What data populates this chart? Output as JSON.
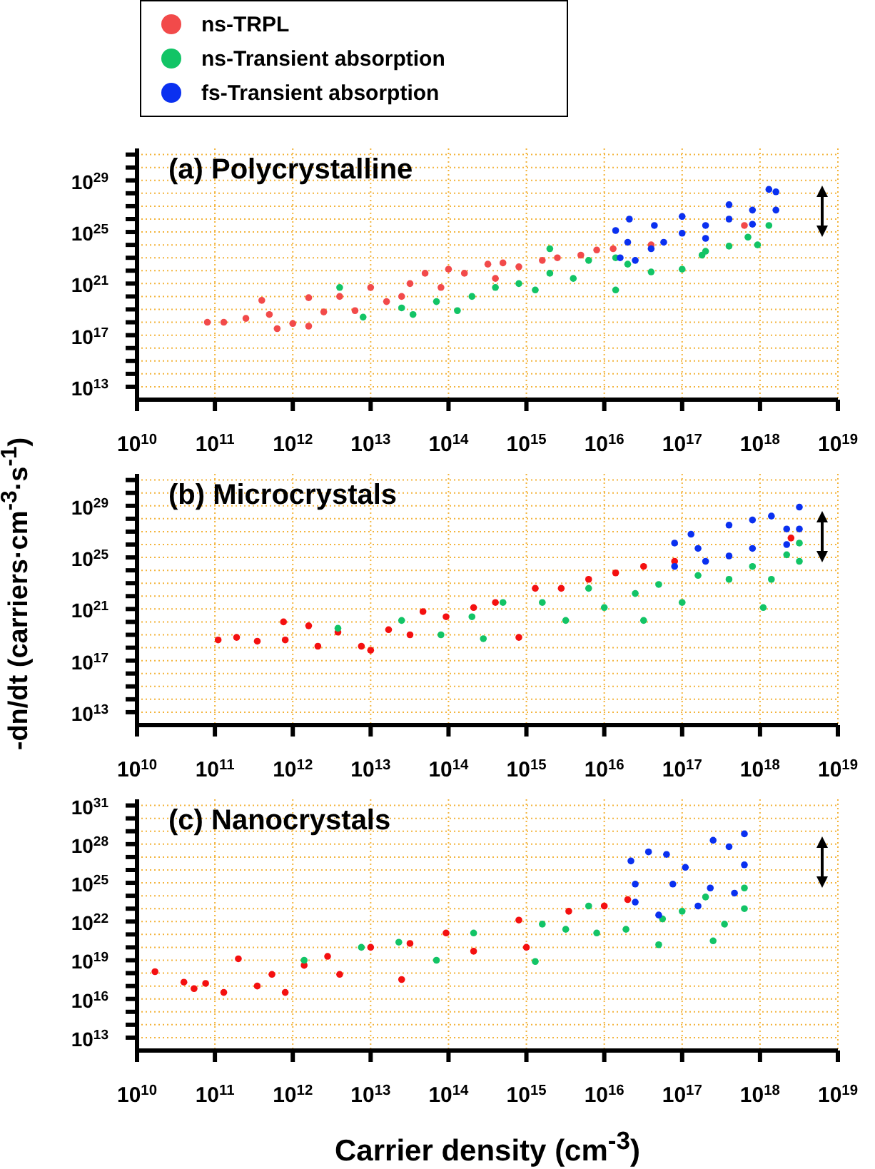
{
  "chart_data": [
    {
      "type": "scatter",
      "title": "(a) Polycrystalline",
      "legend": "top left",
      "grid": true,
      "marker": "circle",
      "log": "xy",
      "xlim": [
        10000000000.0,
        1e+19
      ],
      "xticks": [
        {
          "value": 10000000000.0,
          "label": "10$^{10}$"
        },
        {
          "value": 100000000000.0,
          "label": "10$^{11}$"
        },
        {
          "value": 1000000000000.0,
          "label": "10$^{12}$"
        },
        {
          "value": 10000000000000.0,
          "label": "10$^{13}$"
        },
        {
          "value": 100000000000000.0,
          "label": "10$^{14}$"
        },
        {
          "value": 1000000000000000.0,
          "label": "10$^{15}$"
        },
        {
          "value": 1e+16,
          "label": "10$^{16}$"
        },
        {
          "value": 1e+17,
          "label": "10$^{17}$"
        },
        {
          "value": 1e+18,
          "label": "10$^{18}$"
        },
        {
          "value": 1e+19,
          "label": "10$^{19}$"
        }
      ],
      "ylim": [
        1000000000000.0,
        3e+31
      ],
      "yticks": [
        {
          "value": 10000000000000.0,
          "label": "10$^{13}$"
        },
        {
          "value": 100000000000000.0,
          "label": null
        },
        {
          "value": 1000000000000000.0,
          "label": null
        },
        {
          "value": 1e+16,
          "label": null
        },
        {
          "value": 1e+17,
          "label": "10$^{17}$"
        },
        {
          "value": 1e+18,
          "label": null
        },
        {
          "value": 1e+19,
          "label": null
        },
        {
          "value": 1e+20,
          "label": null
        },
        {
          "value": 1e+21,
          "label": "10$^{21}$"
        },
        {
          "value": 1e+22,
          "label": null
        },
        {
          "value": 1e+23,
          "label": null
        },
        {
          "value": 1e+24,
          "label": null
        },
        {
          "value": 1e+25,
          "label": "10$^{25}$"
        },
        {
          "value": 1e+26,
          "label": null
        },
        {
          "value": 1e+27,
          "label": null
        },
        {
          "value": 1e+28,
          "label": null
        },
        {
          "value": 1e+29,
          "label": "10$^{29}$"
        },
        {
          "value": 1e+30,
          "label": null
        },
        {
          "value": 1e+31,
          "label": null
        }
      ],
      "series": [
        {
          "name": "ns-TRPL",
          "color": "#f24a4a",
          "x": [
            80000000000.0,
            130000000000.0,
            250000000000.0,
            400000000000.0,
            500000000000.0,
            630000000000.0,
            1000000000000.0,
            1600000000000.0,
            1600000000000.0,
            2500000000000.0,
            4000000000000.0,
            6300000000000.0,
            10000000000000.0,
            16000000000000.0,
            25000000000000.0,
            32000000000000.0,
            50000000000000.0,
            80000000000000.0,
            100000000000000.0,
            160000000000000.0,
            320000000000000.0,
            400000000000000.0,
            500000000000000.0,
            800000000000000.0,
            1600000000000000.0,
            2500000000000000.0,
            5000000000000000.0,
            8000000000000000.0,
            1.3e+16,
            4e+16,
            6.3e+17
          ],
          "values": [
            1e+18,
            1e+18,
            2e+18,
            5e+19,
            4e+18,
            3.2e+17,
            8e+17,
            8e+19,
            5e+17,
            6.3e+18,
            1e+20,
            8e+18,
            5e+20,
            4e+19,
            1e+20,
            1e+21,
            6.3e+21,
            5e+20,
            1.3e+22,
            6.3e+21,
            3.2e+22,
            2.5e+21,
            4e+22,
            2e+22,
            6.3e+22,
            1e+23,
            1.6e+23,
            4e+23,
            5e+23,
            1e+24,
            3.2e+25
          ]
        },
        {
          "name": "ns-Transient absorption",
          "color": "#12c466",
          "x": [
            4000000000000.0,
            8000000000000.0,
            25000000000000.0,
            35000000000000.0,
            70000000000000.0,
            130000000000000.0,
            200000000000000.0,
            400000000000000.0,
            800000000000000.0,
            1300000000000000.0,
            2000000000000000.0,
            2000000000000000.0,
            4000000000000000.0,
            6300000000000000.0,
            1.4e+16,
            1.4e+16,
            2e+16,
            4e+16,
            1e+17,
            1.8e+17,
            2e+17,
            4e+17,
            7e+17,
            9.3e+17,
            1.3e+18
          ],
          "values": [
            5e+20,
            2.5e+18,
            1.3e+19,
            4e+18,
            4e+19,
            8e+18,
            1e+20,
            5e+20,
            1e+21,
            3.2e+20,
            5e+23,
            6.3e+21,
            2.5e+21,
            6.3e+22,
            1e+23,
            3.2e+20,
            3.2e+22,
            8e+21,
            1.3e+22,
            1.6e+23,
            3.2e+23,
            8e+23,
            4e+24,
            1e+24,
            3.2e+25
          ]
        },
        {
          "name": "fs-Transient absorption",
          "color": "#0a30f0",
          "x": [
            1.4e+16,
            1.6e+16,
            2e+16,
            2.1e+16,
            2.5e+16,
            4e+16,
            4.4e+16,
            5.8e+16,
            1e+17,
            1e+17,
            2e+17,
            2e+17,
            4e+17,
            4e+17,
            8e+17,
            8e+17,
            1.3e+18,
            1.6e+18,
            1.6e+18
          ],
          "values": [
            1.3e+25,
            1e+23,
            1.6e+24,
            1e+26,
            6.3e+22,
            5e+23,
            3.2e+25,
            1.6e+24,
            1.6e+26,
            8e+24,
            3.2e+25,
            3.2e+24,
            1.3e+27,
            1e+26,
            5e+26,
            4e+25,
            2e+28,
            1.3e+28,
            5e+26
          ]
        }
      ]
    },
    {
      "type": "scatter",
      "title": "(b) Microcrystals",
      "ylabel": "-dn/dt (carriers·cm$^{-3}$·s$^{-1}$)",
      "grid": true,
      "marker": "circle",
      "log": "xy",
      "xlim": [
        10000000000.0,
        1e+19
      ],
      "xticks": [
        {
          "value": 10000000000.0,
          "label": "10$^{10}$"
        },
        {
          "value": 100000000000.0,
          "label": "10$^{11}$"
        },
        {
          "value": 1000000000000.0,
          "label": "10$^{12}$"
        },
        {
          "value": 10000000000000.0,
          "label": "10$^{13}$"
        },
        {
          "value": 100000000000000.0,
          "label": "10$^{14}$"
        },
        {
          "value": 1000000000000000.0,
          "label": "10$^{15}$"
        },
        {
          "value": 1e+16,
          "label": "10$^{16}$"
        },
        {
          "value": 1e+17,
          "label": "10$^{17}$"
        },
        {
          "value": 1e+18,
          "label": "10$^{18}$"
        },
        {
          "value": 1e+19,
          "label": "10$^{19}$"
        }
      ],
      "ylim": [
        1000000000000.0,
        3e+31
      ],
      "yticks": [
        {
          "value": 10000000000000.0,
          "label": "10$^{13}$"
        },
        {
          "value": 100000000000000.0,
          "label": null
        },
        {
          "value": 1000000000000000.0,
          "label": null
        },
        {
          "value": 1e+16,
          "label": null
        },
        {
          "value": 1e+17,
          "label": "10$^{17}$"
        },
        {
          "value": 1e+18,
          "label": null
        },
        {
          "value": 1e+19,
          "label": null
        },
        {
          "value": 1e+20,
          "label": null
        },
        {
          "value": 1e+21,
          "label": "10$^{21}$"
        },
        {
          "value": 1e+22,
          "label": null
        },
        {
          "value": 1e+23,
          "label": null
        },
        {
          "value": 1e+24,
          "label": null
        },
        {
          "value": 1e+25,
          "label": "10$^{25}$"
        },
        {
          "value": 1e+26,
          "label": null
        },
        {
          "value": 1e+27,
          "label": null
        },
        {
          "value": 1e+28,
          "label": null
        },
        {
          "value": 1e+29,
          "label": "10$^{29}$"
        },
        {
          "value": 1e+30,
          "label": null
        },
        {
          "value": 1e+31,
          "label": null
        }
      ],
      "series": [
        {
          "color": "#f41010",
          "x": [
            110000000000.0,
            190000000000.0,
            350000000000.0,
            760000000000.0,
            800000000000.0,
            1600000000000.0,
            2100000000000.0,
            3800000000000.0,
            7600000000000.0,
            10000000000000.0,
            17000000000000.0,
            32000000000000.0,
            47000000000000.0,
            93000000000000.0,
            210000000000000.0,
            400000000000000.0,
            800000000000000.0,
            1300000000000000.0,
            2800000000000000.0,
            6300000000000000.0,
            1.4e+16,
            3.2e+16,
            8e+16,
            2.5e+18
          ],
          "values": [
            4e+18,
            6.3e+18,
            3.2e+18,
            1e+20,
            4e+18,
            5e+19,
            1.3e+18,
            1.6e+19,
            1.3e+18,
            6.3e+17,
            2.5e+19,
            1e+19,
            6.3e+20,
            2.5e+20,
            1.3e+21,
            3.2e+21,
            6.3e+18,
            4e+22,
            4e+22,
            2e+23,
            6.3e+23,
            2e+24,
            5e+24,
            3.2e+26
          ]
        },
        {
          "color": "#12c466",
          "x": [
            3800000000000.0,
            25000000000000.0,
            80000000000000.0,
            200000000000000.0,
            280000000000000.0,
            500000000000000.0,
            1600000000000000.0,
            3200000000000000.0,
            6300000000000000.0,
            1e+16,
            2.5e+16,
            3.2e+16,
            5e+16,
            1e+17,
            1.6e+17,
            4e+17,
            8e+17,
            1.1e+18,
            1.4e+18,
            2.2e+18,
            3.2e+18,
            3.2e+18
          ],
          "values": [
            3.2e+19,
            1.3e+20,
            1e+19,
            2.5e+20,
            5e+18,
            3.2e+21,
            3.2e+21,
            1.3e+20,
            4e+22,
            1.3e+21,
            1.6e+22,
            1.3e+20,
            8e+22,
            3.2e+21,
            4e+23,
            2e+23,
            2e+24,
            1.3e+21,
            2e+23,
            1.6e+25,
            1.3e+26,
            5e+24
          ]
        },
        {
          "color": "#0a30f0",
          "x": [
            8e+16,
            8e+16,
            1.3e+17,
            1.6e+17,
            2e+17,
            4e+17,
            4e+17,
            8e+17,
            8e+17,
            1.4e+18,
            2.2e+18,
            2.2e+18,
            3.2e+18,
            3.2e+18
          ],
          "values": [
            1.3e+26,
            2e+24,
            6.3e+26,
            5e+25,
            5e+24,
            3.2e+27,
            1.3e+25,
            8e+27,
            5e+25,
            1.6e+28,
            1.6e+27,
            1e+26,
            8e+28,
            1.6e+27
          ]
        }
      ]
    },
    {
      "type": "scatter",
      "title": "(c) Nanocrystals",
      "xlabel": "Carrier density (cm$^{-3}$)",
      "grid": true,
      "marker": "circle",
      "log": "xy",
      "xlim": [
        10000000000.0,
        1e+19
      ],
      "xticks": [
        {
          "value": 10000000000.0,
          "label": "10$^{10}$"
        },
        {
          "value": 100000000000.0,
          "label": "10$^{11}$"
        },
        {
          "value": 1000000000000.0,
          "label": "10$^{12}$"
        },
        {
          "value": 10000000000000.0,
          "label": "10$^{13}$"
        },
        {
          "value": 100000000000000.0,
          "label": "10$^{14}$"
        },
        {
          "value": 1000000000000000.0,
          "label": "10$^{15}$"
        },
        {
          "value": 1e+16,
          "label": "10$^{16}$"
        },
        {
          "value": 1e+17,
          "label": "10$^{17}$"
        },
        {
          "value": 1e+18,
          "label": "10$^{18}$"
        },
        {
          "value": 1e+19,
          "label": "10$^{19}$"
        }
      ],
      "ylim": [
        1000000000000.0,
        3e+31
      ],
      "yticks": [
        {
          "value": 10000000000000.0,
          "label": "10$^{13}$"
        },
        {
          "value": 100000000000000.0,
          "label": null
        },
        {
          "value": 1000000000000000.0,
          "label": null
        },
        {
          "value": 1e+16,
          "label": "10$^{16}$"
        },
        {
          "value": 1e+17,
          "label": null
        },
        {
          "value": 1e+18,
          "label": null
        },
        {
          "value": 1e+19,
          "label": "10$^{19}$"
        },
        {
          "value": 1e+20,
          "label": null
        },
        {
          "value": 1e+21,
          "label": null
        },
        {
          "value": 1e+22,
          "label": "10$^{22}$"
        },
        {
          "value": 1e+23,
          "label": null
        },
        {
          "value": 1e+24,
          "label": null
        },
        {
          "value": 1e+25,
          "label": "10$^{25}$"
        },
        {
          "value": 1e+26,
          "label": null
        },
        {
          "value": 1e+27,
          "label": null
        },
        {
          "value": 1e+28,
          "label": "10$^{28}$"
        },
        {
          "value": 1e+29,
          "label": null
        },
        {
          "value": 1e+30,
          "label": null
        },
        {
          "value": 1e+31,
          "label": "10$^{31}$"
        }
      ],
      "series": [
        {
          "color": "#f41010",
          "x": [
            17000000000.0,
            40000000000.0,
            54000000000.0,
            76000000000.0,
            130000000000.0,
            200000000000.0,
            350000000000.0,
            540000000000.0,
            800000000000.0,
            1400000000000.0,
            2800000000000.0,
            4000000000000.0,
            10000000000000.0,
            25000000000000.0,
            32000000000000.0,
            93000000000000.0,
            210000000000000.0,
            800000000000000.0,
            1000000000000000.0,
            3500000000000000.0,
            1e+16,
            2e+16
          ],
          "values": [
            1.3e+18,
            2e+17,
            6.3e+16,
            1.6e+17,
            3.2e+16,
            1.3e+19,
            1e+17,
            8e+17,
            3.2e+16,
            4e+18,
            2e+19,
            8e+17,
            1e+20,
            3.2e+17,
            2e+20,
            1.3e+21,
            5e+19,
            1.3e+22,
            1e+20,
            6.3e+22,
            1.6e+23,
            5e+23
          ]
        },
        {
          "color": "#12c466",
          "x": [
            1400000000000.0,
            7600000000000.0,
            23000000000000.0,
            70000000000000.0,
            210000000000000.0,
            1300000000000000.0,
            1600000000000000.0,
            3200000000000000.0,
            6300000000000000.0,
            8000000000000000.0,
            1.9e+16,
            5e+16,
            5.6e+16,
            1e+17,
            2e+17,
            2.5e+17,
            3.5e+17,
            6.3e+17,
            6.3e+17
          ],
          "values": [
            1e+19,
            1e+20,
            2.5e+20,
            1e+19,
            1.3e+21,
            8e+18,
            6.3e+21,
            2.5e+21,
            1.6e+23,
            1.3e+21,
            2.5e+21,
            1.6e+20,
            1.6e+22,
            6.3e+22,
            8e+23,
            3.2e+20,
            6.3e+21,
            4e+24,
            1e+23
          ]
        },
        {
          "color": "#0a30f0",
          "x": [
            2.2e+16,
            2.5e+16,
            2.5e+16,
            3.7e+16,
            5e+16,
            6.3e+16,
            7.6e+16,
            1.1e+17,
            1.6e+17,
            2.3e+17,
            2.5e+17,
            4e+17,
            4.7e+17,
            6.3e+17,
            6.3e+17
          ],
          "values": [
            5e+26,
            3.2e+23,
            8e+24,
            2.5e+27,
            3.2e+22,
            1.6e+27,
            8e+24,
            1.6e+26,
            1.6e+23,
            4e+24,
            2e+28,
            6.3e+27,
            1.6e+24,
            6.3e+28,
            2.5e+26
          ]
        }
      ]
    }
  ]
}
